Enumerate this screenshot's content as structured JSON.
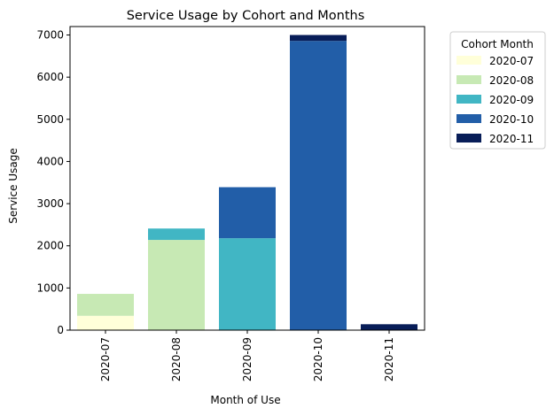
{
  "chart_data": {
    "type": "bar",
    "stacked": true,
    "title": "Service Usage by Cohort and Months",
    "xlabel": "Month of Use",
    "ylabel": "Service Usage",
    "categories": [
      "2020-07",
      "2020-08",
      "2020-09",
      "2020-10",
      "2020-11"
    ],
    "ylim": [
      0,
      7200
    ],
    "yticks": [
      0,
      1000,
      2000,
      3000,
      4000,
      5000,
      6000,
      7000
    ],
    "grid": false,
    "legend": {
      "title": "Cohort Month",
      "placement": "outside-top-right"
    },
    "series": [
      {
        "name": "2020-07",
        "color": "#ffffd9",
        "values": [
          340,
          0,
          0,
          0,
          0
        ]
      },
      {
        "name": "2020-08",
        "color": "#c7e9b4",
        "values": [
          520,
          2140,
          0,
          0,
          0
        ]
      },
      {
        "name": "2020-09",
        "color": "#41b6c4",
        "values": [
          0,
          270,
          2180,
          0,
          0
        ]
      },
      {
        "name": "2020-10",
        "color": "#225ea8",
        "values": [
          0,
          0,
          1210,
          6860,
          0
        ]
      },
      {
        "name": "2020-11",
        "color": "#081d58",
        "values": [
          0,
          0,
          0,
          140,
          140
        ]
      }
    ]
  }
}
